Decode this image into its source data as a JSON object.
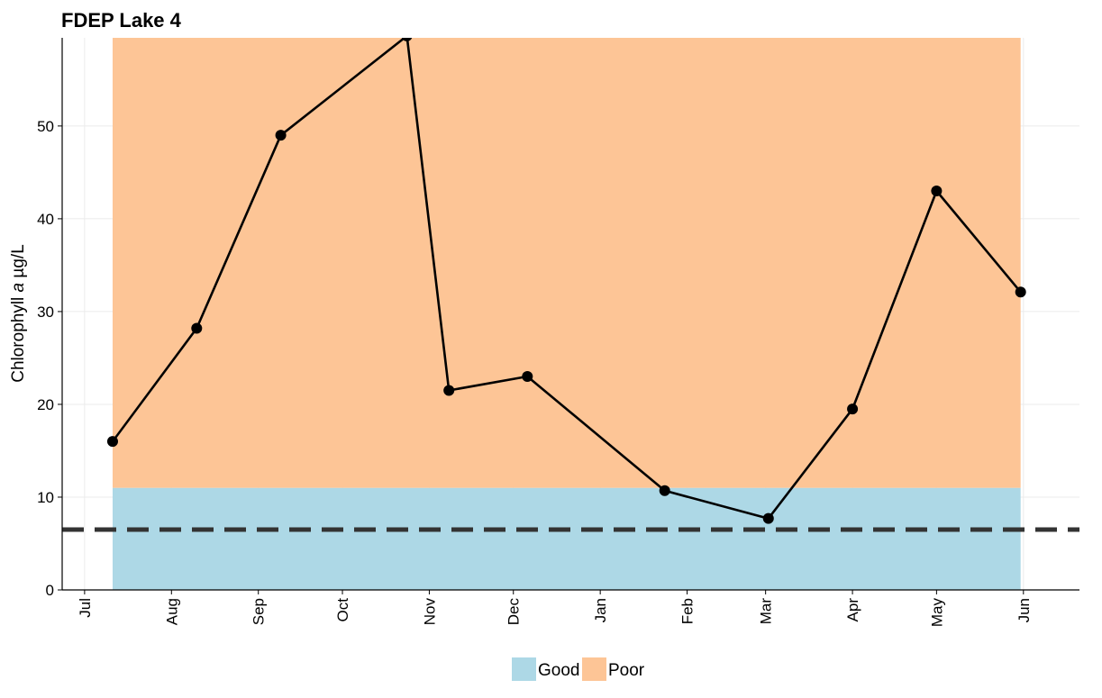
{
  "chart_data": {
    "type": "line",
    "title": "FDEP Lake 4",
    "ylabel_prefix": "Chlorophyll ",
    "ylabel_italic": "a",
    "ylabel_suffix": " µg/L",
    "xlabel": "",
    "ylim": [
      0,
      59.5
    ],
    "yticks": [
      0,
      10,
      20,
      30,
      40,
      50
    ],
    "xlim": [
      "2018-06-23",
      "2019-06-21"
    ],
    "xticks": [
      {
        "date": "2018-07-01",
        "label": "Jul"
      },
      {
        "date": "2018-08-01",
        "label": "Aug"
      },
      {
        "date": "2018-09-01",
        "label": "Sep"
      },
      {
        "date": "2018-10-01",
        "label": "Oct"
      },
      {
        "date": "2018-11-01",
        "label": "Nov"
      },
      {
        "date": "2018-12-01",
        "label": "Dec"
      },
      {
        "date": "2019-01-01",
        "label": "Jan"
      },
      {
        "date": "2019-02-01",
        "label": "Feb"
      },
      {
        "date": "2019-03-01",
        "label": "Mar"
      },
      {
        "date": "2019-04-01",
        "label": "Apr"
      },
      {
        "date": "2019-05-01",
        "label": "May"
      },
      {
        "date": "2019-06-01",
        "label": "Jun"
      }
    ],
    "grid": true,
    "series": [
      {
        "points": [
          {
            "x": "2018-07-11",
            "y": 16.0
          },
          {
            "x": "2018-08-10",
            "y": 28.2
          },
          {
            "x": "2018-09-09",
            "y": 49.0
          },
          {
            "x": "2018-10-24",
            "y": 59.7
          },
          {
            "x": "2018-11-08",
            "y": 21.5
          },
          {
            "x": "2018-12-06",
            "y": 23.0
          },
          {
            "x": "2019-01-24",
            "y": 10.7
          },
          {
            "x": "2019-03-02",
            "y": 7.7
          },
          {
            "x": "2019-04-01",
            "y": 19.5
          },
          {
            "x": "2019-05-01",
            "y": 43.0
          },
          {
            "x": "2019-05-31",
            "y": 32.1
          }
        ]
      }
    ],
    "bands": [
      {
        "name": "Good",
        "from": 0,
        "to": 11,
        "x_from": "2018-07-11",
        "x_to": "2019-05-31",
        "color": "#add8e6"
      },
      {
        "name": "Poor",
        "from": 11,
        "to": 59.5,
        "x_from": "2018-07-11",
        "x_to": "2019-05-31",
        "color": "#fdc596"
      }
    ],
    "reference_line": {
      "y": 6.5,
      "style": "dashed",
      "color": "#333333"
    },
    "legend": {
      "position": "bottom",
      "items": [
        {
          "label": "Good",
          "color": "#add8e6"
        },
        {
          "label": "Poor",
          "color": "#fdc596"
        }
      ]
    }
  }
}
